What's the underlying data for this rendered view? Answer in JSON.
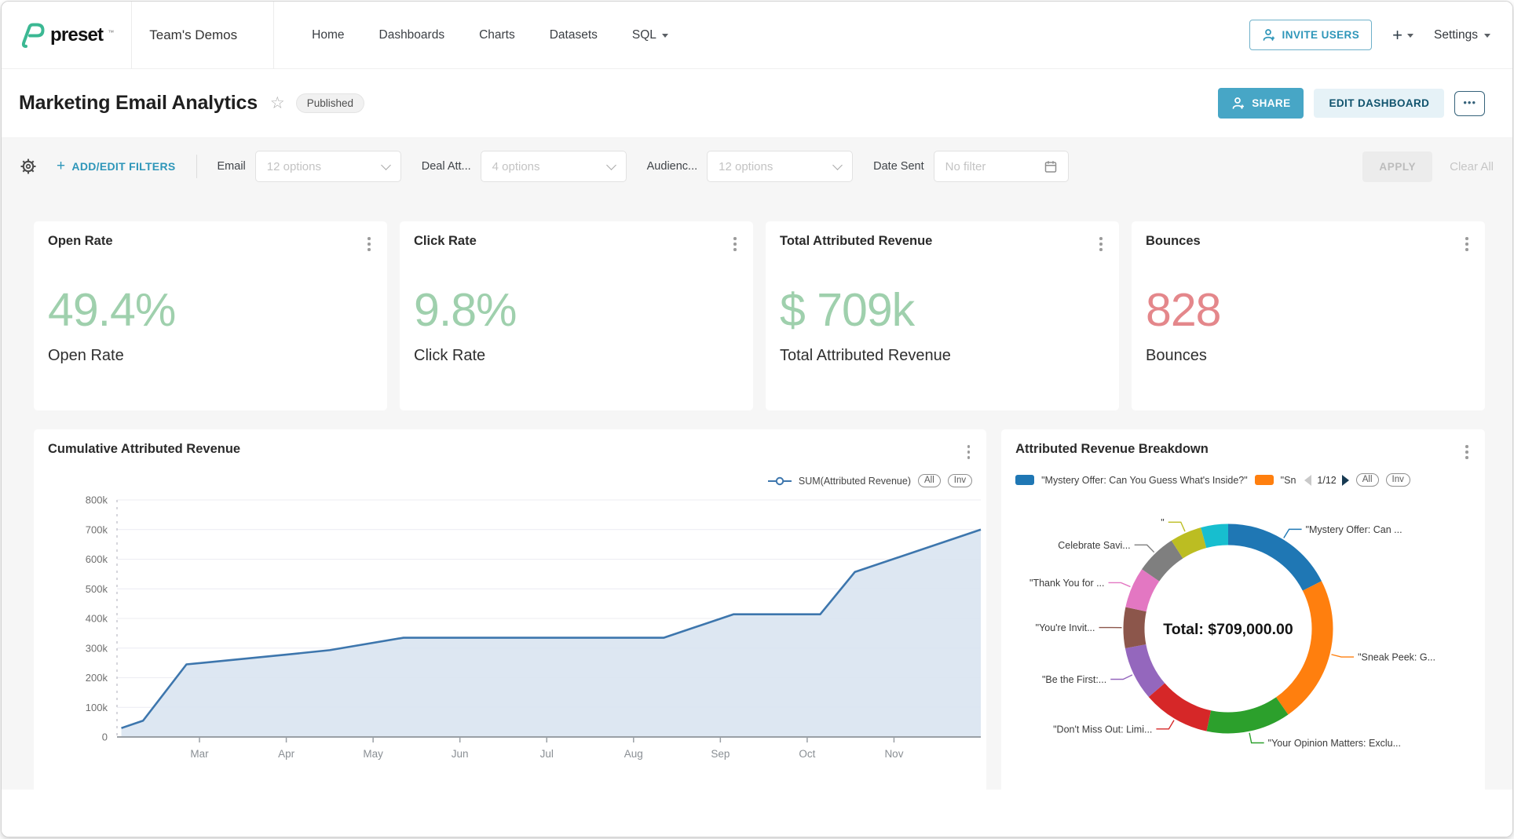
{
  "topnav": {
    "brand": "preset",
    "workspace": "Team's Demos",
    "menu": [
      "Home",
      "Dashboards",
      "Charts",
      "Datasets",
      "SQL"
    ],
    "invite_users_label": "INVITE USERS",
    "plus_label": "+",
    "settings_label": "Settings"
  },
  "header": {
    "title": "Marketing Email Analytics",
    "status_badge": "Published",
    "share_label": "SHARE",
    "edit_label": "EDIT DASHBOARD",
    "more_label": "•••"
  },
  "filter_bar": {
    "add_edit_label": "ADD/EDIT FILTERS",
    "filters": [
      {
        "label": "Email",
        "value": "12 options"
      },
      {
        "label": "Deal Att...",
        "value": "4 options"
      },
      {
        "label": "Audienc...",
        "value": "12 options"
      },
      {
        "label": "Date Sent",
        "value": "No filter"
      }
    ],
    "apply_label": "APPLY",
    "clear_label": "Clear All"
  },
  "kpis": [
    {
      "title": "Open Rate",
      "value": "49.4%",
      "subtitle": "Open Rate",
      "color": "#9fd0ad"
    },
    {
      "title": "Click Rate",
      "value": "9.8%",
      "subtitle": "Click Rate",
      "color": "#9fd0ad"
    },
    {
      "title": "Total Attributed Revenue",
      "value": "$ 709k",
      "subtitle": "Total Attributed Revenue",
      "color": "#9fd0ad"
    },
    {
      "title": "Bounces",
      "value": "828",
      "subtitle": "Bounces",
      "color": "#e4878b"
    }
  ],
  "chart_data": [
    {
      "type": "area",
      "title": "Cumulative Attributed Revenue",
      "legend": [
        {
          "name": "SUM(Attributed Revenue)",
          "color": "#3d76ad"
        }
      ],
      "legend_buttons": [
        "All",
        "Inv"
      ],
      "x_unit": "month",
      "x": [
        2.1,
        2.35,
        2.85,
        4.0,
        4.5,
        5.35,
        8.35,
        9.15,
        10.15,
        10.55,
        12.0
      ],
      "y": [
        30000,
        55000,
        245000,
        278000,
        293000,
        335000,
        335000,
        414000,
        414000,
        557000,
        700000
      ],
      "xlim": [
        2.05,
        12.0
      ],
      "ylim": [
        0,
        800000
      ],
      "y_tick_labels": [
        "0",
        "100k",
        "200k",
        "300k",
        "400k",
        "500k",
        "600k",
        "700k",
        "800k"
      ],
      "x_tick_months": [
        3,
        4,
        5,
        6,
        7,
        8,
        9,
        10,
        11
      ],
      "x_tick_labels": [
        "Mar",
        "Apr",
        "May",
        "Jun",
        "Jul",
        "Aug",
        "Sep",
        "Oct",
        "Nov"
      ],
      "line_color": "#3d76ad",
      "fill_color": "#d9e4f1",
      "grid": true,
      "legend_position": "top-right"
    },
    {
      "type": "pie",
      "title": "Attributed Revenue Breakdown",
      "center_label": "Total: $709,000.00",
      "legend_visible": [
        {
          "label": "\"Mystery Offer: Can You Guess What's Inside?\"",
          "color": "#1f77b4"
        },
        {
          "label": "\"Sn",
          "color": "#ff7f0e"
        }
      ],
      "legend_pagination": "1/12",
      "legend_buttons": [
        "All",
        "Inv"
      ],
      "slices": [
        {
          "label": "\"Mystery Offer: Can ...",
          "pct": 17.5,
          "color": "#1f77b4"
        },
        {
          "label": "\"Sneak Peek: G...",
          "pct": 22.8,
          "color": "#ff7f0e"
        },
        {
          "label": "\"Your Opinion Matters: Exclu...",
          "pct": 13.0,
          "color": "#2ca02c"
        },
        {
          "label": "\"Don't Miss Out: Limi...",
          "pct": 10.4,
          "color": "#d62728"
        },
        {
          "label": "\"Be the First:...",
          "pct": 8.3,
          "color": "#9467bd"
        },
        {
          "label": "\"You're Invit...",
          "pct": 6.3,
          "color": "#8c564b"
        },
        {
          "label": "\"Thank You for ...",
          "pct": 6.3,
          "color": "#e377c2"
        },
        {
          "label": "Celebrate Savi...",
          "pct": 6.3,
          "color": "#7f7f7f"
        },
        {
          "label": "\"",
          "pct": 4.9,
          "color": "#bcbd22"
        },
        {
          "label": "",
          "pct": 4.2,
          "color": "#17becf"
        }
      ]
    }
  ]
}
